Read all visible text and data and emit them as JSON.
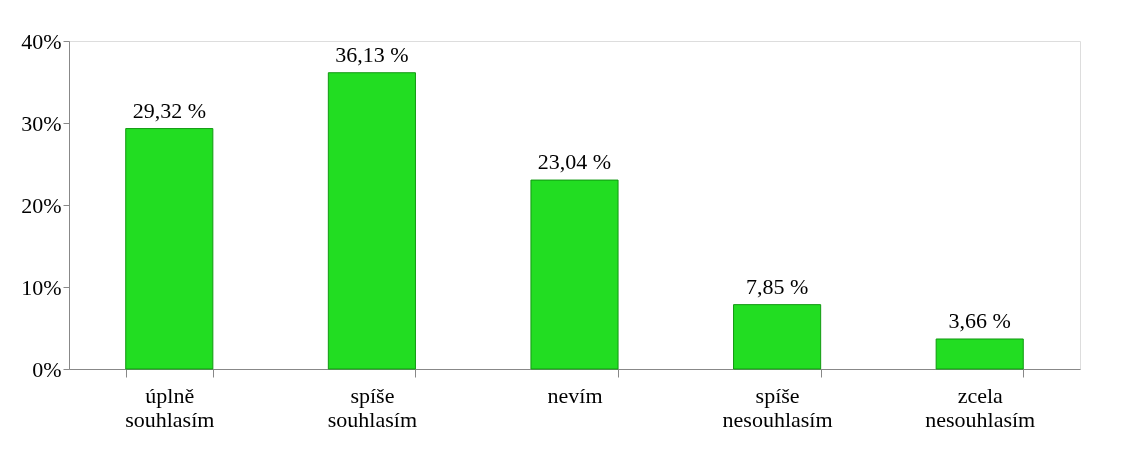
{
  "chart_data": {
    "type": "bar",
    "categories": [
      "úplně souhlasím",
      "spíše souhlasím",
      "nevím",
      "spíše nesouhlasím",
      "zcela nesouhlasím"
    ],
    "values": [
      29.32,
      36.13,
      23.04,
      7.85,
      3.66
    ],
    "color": "#22dd22",
    "value_labels": [
      "29,32 %",
      "36,13 %",
      "23,04 %",
      "7,85 %",
      "3,66 %"
    ],
    "ylim": [
      0,
      40
    ],
    "yticks": [
      {
        "value": 0,
        "label": "0%"
      },
      {
        "value": 10,
        "label": "10%"
      },
      {
        "value": 20,
        "label": "20%"
      },
      {
        "value": 30,
        "label": "30%"
      },
      {
        "value": 40,
        "label": "40%"
      }
    ],
    "grid": false
  }
}
